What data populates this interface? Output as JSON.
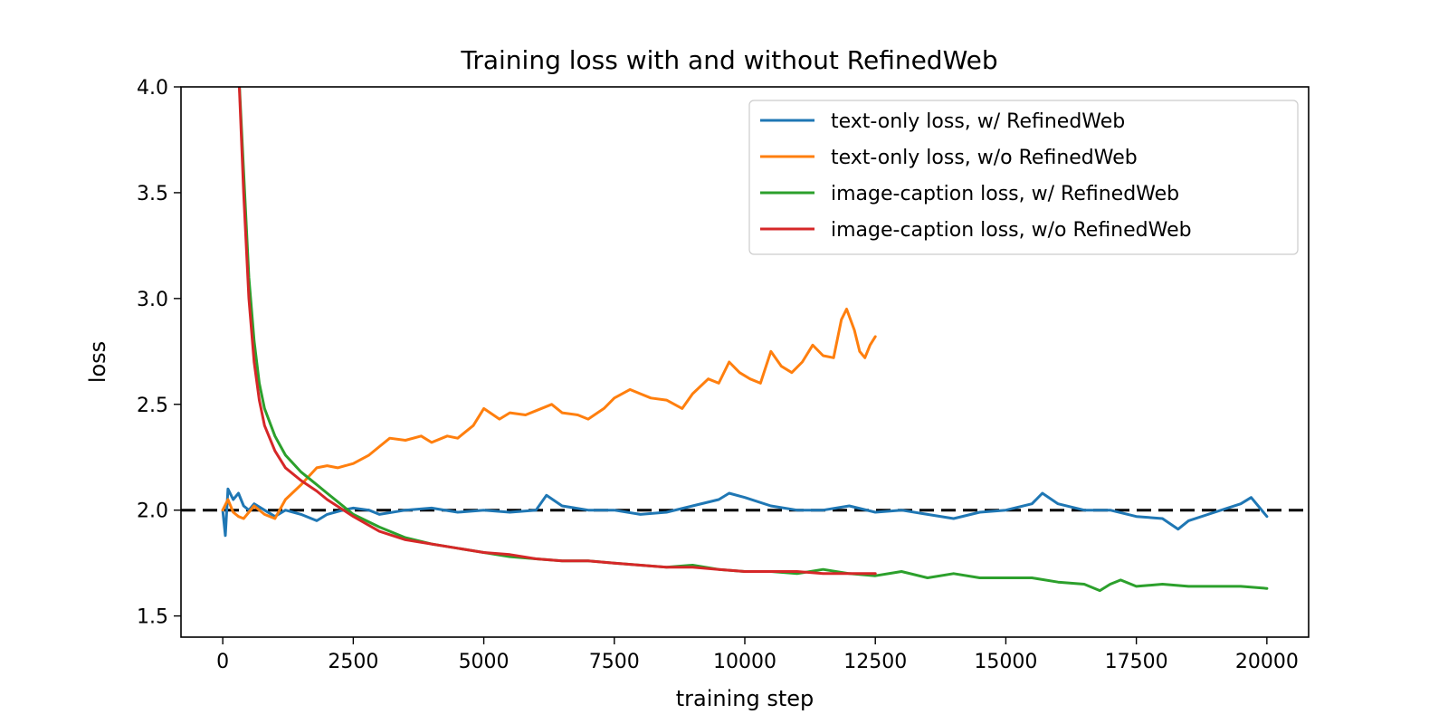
{
  "chart_data": {
    "type": "line",
    "title": "Training loss with and without RefinedWeb",
    "xlabel": "training step",
    "ylabel": "loss",
    "xlim": [
      -800,
      20800
    ],
    "ylim": [
      1.4,
      4.0
    ],
    "xticks": [
      0,
      2500,
      5000,
      7500,
      10000,
      12500,
      15000,
      17500,
      20000
    ],
    "xtick_labels": [
      "0",
      "2500",
      "5000",
      "7500",
      "10000",
      "12500",
      "15000",
      "17500",
      "20000"
    ],
    "yticks": [
      1.5,
      2.0,
      2.5,
      3.0,
      3.5,
      4.0
    ],
    "ytick_labels": [
      "1.5",
      "2.0",
      "2.5",
      "3.0",
      "3.5",
      "4.0"
    ],
    "grid": false,
    "legend_position": "top-right",
    "reference_line": {
      "y": 2.0,
      "style": "dashed",
      "color": "#000000"
    },
    "series": [
      {
        "name": "text-only loss, w/ RefinedWeb",
        "color": "#1f77b4",
        "x": [
          0,
          50,
          100,
          200,
          300,
          400,
          500,
          600,
          800,
          1000,
          1200,
          1500,
          1800,
          2000,
          2300,
          2500,
          2800,
          3000,
          3500,
          4000,
          4500,
          5000,
          5500,
          6000,
          6200,
          6500,
          7000,
          7500,
          8000,
          8500,
          9000,
          9500,
          9700,
          10000,
          10500,
          11000,
          11500,
          12000,
          12500,
          13000,
          13500,
          14000,
          14500,
          15000,
          15500,
          15700,
          16000,
          16500,
          17000,
          17500,
          18000,
          18300,
          18500,
          19000,
          19500,
          19700,
          20000
        ],
        "y": [
          2.0,
          1.88,
          2.1,
          2.05,
          2.08,
          2.02,
          2.0,
          2.03,
          2.0,
          1.97,
          2.0,
          1.98,
          1.95,
          1.98,
          2.0,
          2.01,
          2.0,
          1.98,
          2.0,
          2.01,
          1.99,
          2.0,
          1.99,
          2.0,
          2.07,
          2.02,
          2.0,
          2.0,
          1.98,
          1.99,
          2.02,
          2.05,
          2.08,
          2.06,
          2.02,
          2.0,
          2.0,
          2.02,
          1.99,
          2.0,
          1.98,
          1.96,
          1.99,
          2.0,
          2.03,
          2.08,
          2.03,
          2.0,
          2.0,
          1.97,
          1.96,
          1.91,
          1.95,
          1.99,
          2.03,
          2.06,
          1.97
        ]
      },
      {
        "name": "text-only loss, w/o RefinedWeb",
        "color": "#ff7f0e",
        "x": [
          0,
          100,
          200,
          300,
          400,
          500,
          600,
          800,
          1000,
          1200,
          1500,
          1800,
          2000,
          2200,
          2500,
          2800,
          3000,
          3200,
          3500,
          3800,
          4000,
          4300,
          4500,
          4800,
          5000,
          5300,
          5500,
          5800,
          6000,
          6300,
          6500,
          6800,
          7000,
          7300,
          7500,
          7800,
          8000,
          8200,
          8500,
          8800,
          9000,
          9300,
          9500,
          9700,
          9900,
          10100,
          10300,
          10500,
          10700,
          10900,
          11100,
          11300,
          11500,
          11700,
          11850,
          11950,
          12100,
          12200,
          12300,
          12400,
          12500
        ],
        "y": [
          2.0,
          2.05,
          1.99,
          1.97,
          1.96,
          1.99,
          2.02,
          1.98,
          1.96,
          2.05,
          2.12,
          2.2,
          2.21,
          2.2,
          2.22,
          2.26,
          2.3,
          2.34,
          2.33,
          2.35,
          2.32,
          2.35,
          2.34,
          2.4,
          2.48,
          2.43,
          2.46,
          2.45,
          2.47,
          2.5,
          2.46,
          2.45,
          2.43,
          2.48,
          2.53,
          2.57,
          2.55,
          2.53,
          2.52,
          2.48,
          2.55,
          2.62,
          2.6,
          2.7,
          2.65,
          2.62,
          2.6,
          2.75,
          2.68,
          2.65,
          2.7,
          2.78,
          2.73,
          2.72,
          2.9,
          2.95,
          2.85,
          2.75,
          2.72,
          2.78,
          2.82
        ]
      },
      {
        "name": "image-caption loss, w/ RefinedWeb",
        "color": "#2ca02c",
        "x": [
          300,
          400,
          500,
          600,
          700,
          800,
          1000,
          1200,
          1500,
          1800,
          2000,
          2500,
          3000,
          3500,
          4000,
          4500,
          5000,
          5500,
          6000,
          6500,
          7000,
          7500,
          8000,
          8500,
          9000,
          9500,
          10000,
          10500,
          11000,
          11500,
          12000,
          12500,
          13000,
          13500,
          14000,
          14500,
          15000,
          15500,
          16000,
          16500,
          16800,
          17000,
          17200,
          17500,
          18000,
          18500,
          19000,
          19500,
          20000
        ],
        "y": [
          4.1,
          3.6,
          3.1,
          2.8,
          2.6,
          2.48,
          2.35,
          2.26,
          2.18,
          2.12,
          2.08,
          1.98,
          1.92,
          1.87,
          1.84,
          1.82,
          1.8,
          1.78,
          1.77,
          1.76,
          1.76,
          1.75,
          1.74,
          1.73,
          1.74,
          1.72,
          1.71,
          1.71,
          1.7,
          1.72,
          1.7,
          1.69,
          1.71,
          1.68,
          1.7,
          1.68,
          1.68,
          1.68,
          1.66,
          1.65,
          1.62,
          1.65,
          1.67,
          1.64,
          1.65,
          1.64,
          1.64,
          1.64,
          1.63
        ]
      },
      {
        "name": "image-caption loss, w/o RefinedWeb",
        "color": "#d62728",
        "x": [
          300,
          400,
          500,
          600,
          700,
          800,
          1000,
          1200,
          1500,
          1800,
          2000,
          2500,
          3000,
          3500,
          4000,
          4500,
          5000,
          5500,
          6000,
          6500,
          7000,
          7500,
          8000,
          8500,
          9000,
          9500,
          10000,
          10500,
          11000,
          11500,
          12000,
          12500
        ],
        "y": [
          4.1,
          3.5,
          3.0,
          2.7,
          2.52,
          2.4,
          2.28,
          2.2,
          2.14,
          2.09,
          2.05,
          1.97,
          1.9,
          1.86,
          1.84,
          1.82,
          1.8,
          1.79,
          1.77,
          1.76,
          1.76,
          1.75,
          1.74,
          1.73,
          1.73,
          1.72,
          1.71,
          1.71,
          1.71,
          1.7,
          1.7,
          1.7
        ]
      }
    ]
  }
}
